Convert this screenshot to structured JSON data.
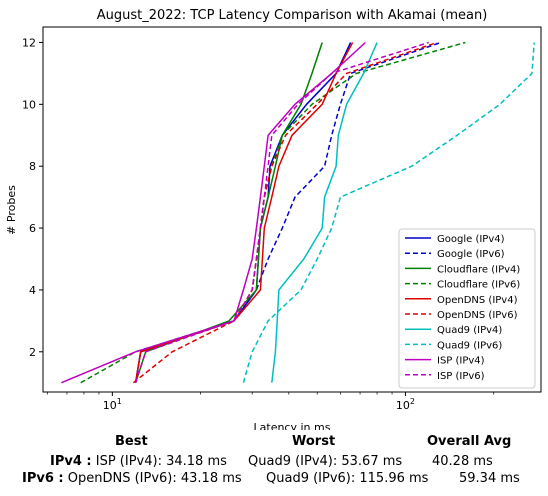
{
  "chart_data": {
    "type": "line",
    "title": "August_2022: TCP Latency Comparison with Akamai (mean)",
    "xlabel": "Latency in ms",
    "ylabel": "# Probes",
    "xscale": "log",
    "xlim": [
      5.8,
      290
    ],
    "ylim": [
      0.7,
      12.5
    ],
    "xticks": [
      {
        "value": 10,
        "label": "10^1"
      },
      {
        "value": 100,
        "label": "10^2"
      }
    ],
    "yticks": [
      2,
      4,
      6,
      8,
      10,
      12
    ],
    "grid": false,
    "legend_position": "lower-right",
    "series": [
      {
        "name": "Google (IPv4)",
        "color": "#0000cc",
        "dash": "solid",
        "points": [
          [
            12,
            1
          ],
          [
            12.5,
            2
          ],
          [
            26,
            3
          ],
          [
            31,
            4
          ],
          [
            31.5,
            5
          ],
          [
            32,
            6
          ],
          [
            34,
            7
          ],
          [
            34.5,
            8
          ],
          [
            38,
            9
          ],
          [
            46,
            10
          ],
          [
            58,
            11
          ],
          [
            65,
            12
          ]
        ]
      },
      {
        "name": "Google (IPv6)",
        "color": "#0000cc",
        "dash": "dashed",
        "points": [
          [
            12,
            1
          ],
          [
            12.5,
            2
          ],
          [
            26,
            3
          ],
          [
            31,
            4
          ],
          [
            34,
            5
          ],
          [
            38,
            6
          ],
          [
            42,
            7
          ],
          [
            53,
            8
          ],
          [
            56,
            9
          ],
          [
            60,
            10
          ],
          [
            65,
            11
          ],
          [
            132,
            12
          ]
        ]
      },
      {
        "name": "Cloudflare (IPv4)",
        "color": "#008000",
        "dash": "solid",
        "points": [
          [
            12,
            1
          ],
          [
            13,
            2
          ],
          [
            25,
            3
          ],
          [
            31,
            4
          ],
          [
            31.5,
            5
          ],
          [
            32,
            6
          ],
          [
            34,
            7
          ],
          [
            36,
            8
          ],
          [
            38,
            9
          ],
          [
            44,
            10
          ],
          [
            48,
            11
          ],
          [
            52,
            12
          ]
        ]
      },
      {
        "name": "Cloudflare (IPv6)",
        "color": "#008000",
        "dash": "dashed",
        "points": [
          [
            7.8,
            1
          ],
          [
            12,
            2
          ],
          [
            26,
            3
          ],
          [
            30,
            4
          ],
          [
            31,
            5
          ],
          [
            32,
            6
          ],
          [
            33,
            7
          ],
          [
            35,
            8
          ],
          [
            38,
            9
          ],
          [
            48,
            10
          ],
          [
            68,
            11
          ],
          [
            160,
            12
          ]
        ]
      },
      {
        "name": "OpenDNS (IPv4)",
        "color": "#e00000",
        "dash": "solid",
        "points": [
          [
            12,
            1
          ],
          [
            12.5,
            2
          ],
          [
            26,
            3
          ],
          [
            32,
            4
          ],
          [
            32.5,
            5
          ],
          [
            33,
            6
          ],
          [
            35,
            7
          ],
          [
            37,
            8
          ],
          [
            41,
            9
          ],
          [
            52,
            10
          ],
          [
            58,
            11
          ],
          [
            66,
            12
          ]
        ]
      },
      {
        "name": "OpenDNS (IPv6)",
        "color": "#e00000",
        "dash": "dashed",
        "points": [
          [
            11.8,
            1
          ],
          [
            16,
            2
          ],
          [
            26,
            3
          ],
          [
            30,
            4
          ],
          [
            31,
            5
          ],
          [
            32,
            6
          ],
          [
            33,
            7
          ],
          [
            35,
            8
          ],
          [
            39,
            9
          ],
          [
            50,
            10
          ],
          [
            63,
            11
          ],
          [
            128,
            12
          ]
        ]
      },
      {
        "name": "Quad9 (IPv4)",
        "color": "#00bfbf",
        "dash": "solid",
        "points": [
          [
            35,
            1
          ],
          [
            36,
            2
          ],
          [
            36.5,
            3
          ],
          [
            37,
            4
          ],
          [
            45,
            5
          ],
          [
            52,
            6
          ],
          [
            53,
            7
          ],
          [
            58,
            8
          ],
          [
            59,
            9
          ],
          [
            63,
            10
          ],
          [
            72,
            11
          ],
          [
            80,
            12
          ]
        ]
      },
      {
        "name": "Quad9 (IPv6)",
        "color": "#00bfbf",
        "dash": "dashed",
        "points": [
          [
            28,
            1
          ],
          [
            30,
            2
          ],
          [
            34,
            3
          ],
          [
            44,
            4
          ],
          [
            50,
            5
          ],
          [
            56,
            6
          ],
          [
            60,
            7
          ],
          [
            105,
            8
          ],
          [
            150,
            9
          ],
          [
            210,
            10
          ],
          [
            270,
            11
          ],
          [
            275,
            12
          ]
        ]
      },
      {
        "name": "ISP (IPv4)",
        "color": "#bf00bf",
        "dash": "solid",
        "points": [
          [
            6.7,
            1
          ],
          [
            12,
            2
          ],
          [
            26,
            3
          ],
          [
            28,
            4
          ],
          [
            30,
            5
          ],
          [
            31,
            6
          ],
          [
            32,
            7
          ],
          [
            33,
            8
          ],
          [
            34,
            9
          ],
          [
            42,
            10
          ],
          [
            56,
            11
          ],
          [
            73,
            12
          ]
        ]
      },
      {
        "name": "ISP (IPv6)",
        "color": "#bf00bf",
        "dash": "dashed",
        "points": [
          [
            12,
            1
          ],
          [
            13,
            2
          ],
          [
            26,
            3
          ],
          [
            30,
            4
          ],
          [
            31,
            5
          ],
          [
            32,
            6
          ],
          [
            33,
            7
          ],
          [
            34,
            8
          ],
          [
            35,
            9
          ],
          [
            43,
            10
          ],
          [
            56,
            11
          ],
          [
            120,
            12
          ]
        ]
      }
    ]
  },
  "summary": {
    "headers": {
      "best": "Best",
      "worst": "Worst",
      "avg": "Overall Avg"
    },
    "ipv4": {
      "label": "IPv4 :",
      "best": "ISP (IPv4): 34.18 ms",
      "worst": "Quad9 (IPv4): 53.67 ms",
      "avg": "40.28 ms"
    },
    "ipv6": {
      "label": "IPv6 :",
      "best": "OpenDNS (IPv6): 43.18 ms",
      "worst": "Quad9 (IPv6): 115.96 ms",
      "avg": "59.34 ms"
    }
  }
}
